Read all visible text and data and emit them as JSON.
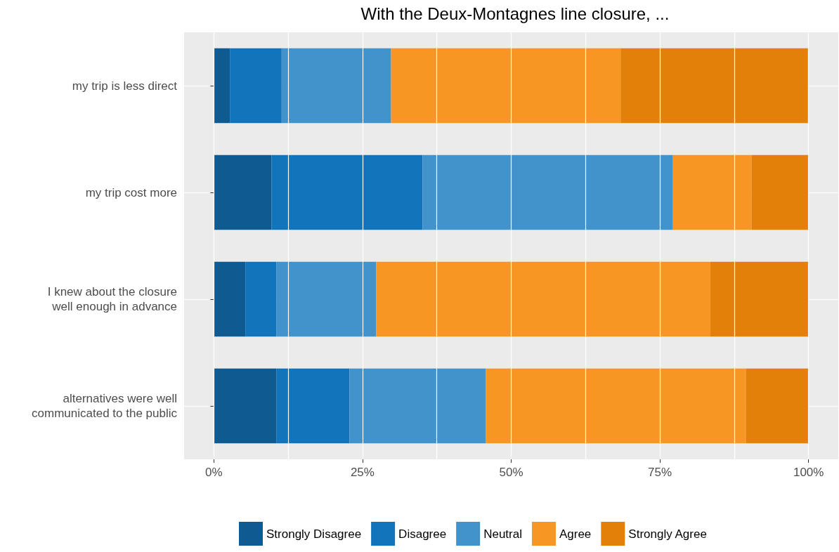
{
  "chart_data": {
    "type": "bar",
    "orientation": "horizontal",
    "stacked": true,
    "title": "With the Deux-Montagnes line closure, ...",
    "categories": [
      "my trip is less direct",
      "my trip cost more",
      "I knew about the closure\nwell enough in advance",
      "alternatives were well\ncommunicated to the public"
    ],
    "series": [
      {
        "name": "Strongly Disagree",
        "color": "#0f5b91",
        "values": [
          2.7,
          9.7,
          5.3,
          10.5
        ]
      },
      {
        "name": "Disagree",
        "color": "#1274ba",
        "values": [
          8.7,
          25.4,
          5.2,
          12.3
        ]
      },
      {
        "name": "Neutral",
        "color": "#4292cb",
        "values": [
          18.4,
          42.1,
          16.8,
          22.9
        ]
      },
      {
        "name": "Agree",
        "color": "#f79622",
        "values": [
          38.6,
          13.2,
          56.2,
          43.8
        ]
      },
      {
        "name": "Strongly Agree",
        "color": "#e2800a",
        "values": [
          31.5,
          9.6,
          16.5,
          10.5
        ]
      }
    ],
    "xlim": [
      -5,
      105
    ],
    "xticks": [
      {
        "value": 0,
        "label": "0%"
      },
      {
        "value": 25,
        "label": "25%"
      },
      {
        "value": 50,
        "label": "50%"
      },
      {
        "value": 75,
        "label": "75%"
      },
      {
        "value": 100,
        "label": "100%"
      }
    ],
    "grid": true,
    "legend": "bottom"
  }
}
